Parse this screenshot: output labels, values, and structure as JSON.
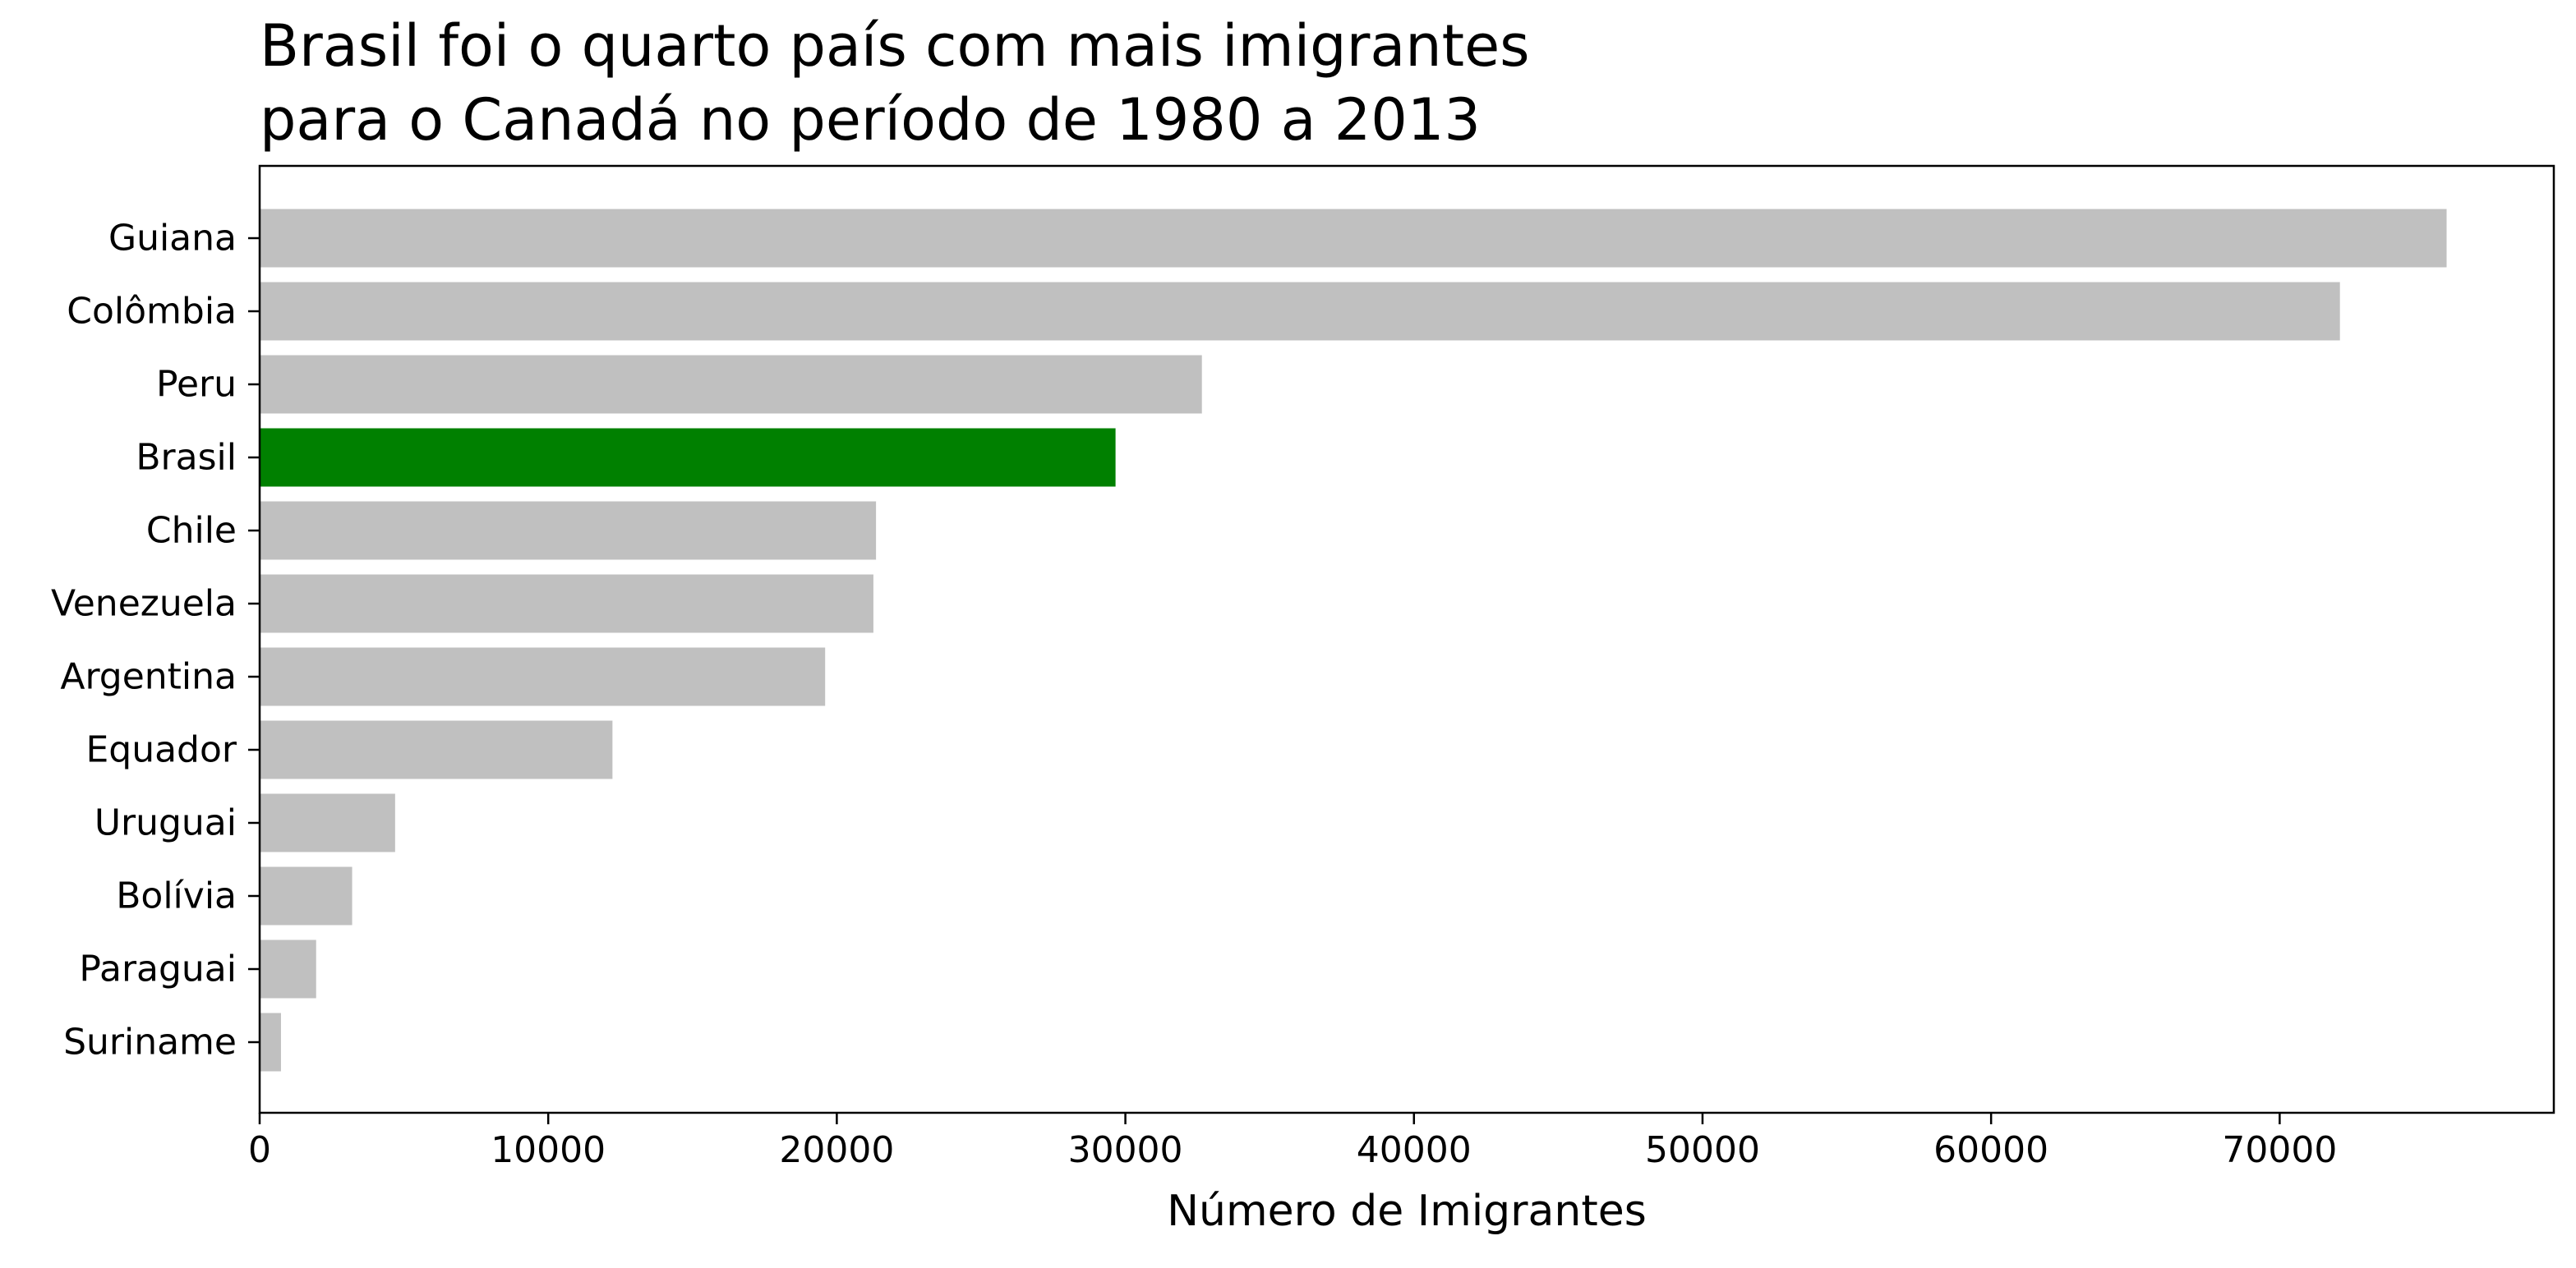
{
  "chart_data": {
    "type": "bar",
    "orientation": "horizontal",
    "title_lines": [
      "Brasil foi o quarto país com mais imigrantes",
      "para o Canadá no período de 1980 a 2013"
    ],
    "xlabel": "Número de Imigrantes",
    "ylabel": "",
    "xlim": [
      0,
      79500
    ],
    "xticks": [
      0,
      10000,
      20000,
      30000,
      40000,
      50000,
      60000,
      70000
    ],
    "xtick_labels": [
      "0",
      "10000",
      "20000",
      "30000",
      "40000",
      "50000",
      "60000",
      "70000"
    ],
    "categories": [
      "Guiana",
      "Colômbia",
      "Peru",
      "Brasil",
      "Chile",
      "Venezuela",
      "Argentina",
      "Equador",
      "Uruguai",
      "Bolívia",
      "Paraguai",
      "Suriname"
    ],
    "values": [
      75785,
      72088,
      32652,
      29659,
      21359,
      21268,
      19596,
      12226,
      4694,
      3205,
      1957,
      739
    ],
    "colors": [
      "#c0c0c0",
      "#c0c0c0",
      "#c0c0c0",
      "#008000",
      "#c0c0c0",
      "#c0c0c0",
      "#c0c0c0",
      "#c0c0c0",
      "#c0c0c0",
      "#c0c0c0",
      "#c0c0c0",
      "#c0c0c0"
    ],
    "grid": false,
    "legend": "none"
  }
}
